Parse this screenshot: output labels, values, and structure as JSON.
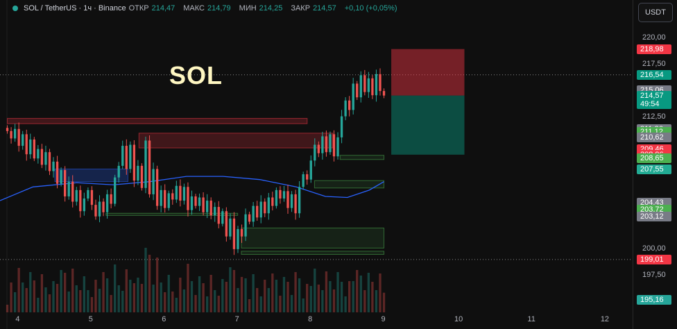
{
  "header": {
    "symbol": "SOL / TetherUS · 1ч · Binance",
    "open_label": "ОТКР",
    "open": "214,47",
    "high_label": "МАКС",
    "high": "214,79",
    "low_label": "МИН",
    "low": "214,25",
    "close_label": "ЗАКР",
    "close": "214,57",
    "change": "+0,10 (+0,05%)"
  },
  "watermark": "SOL",
  "currency": "USDT",
  "colors": {
    "up": "#26a69a",
    "down": "#ef5350",
    "ma": "#2962ff",
    "bg": "#0f0f0f"
  },
  "price_scale": {
    "labels": [
      {
        "text": "220,00",
        "price": 220.0
      },
      {
        "text": "217,50",
        "price": 217.5
      },
      {
        "text": "212,50",
        "price": 212.5
      },
      {
        "text": "200,00",
        "price": 200.0
      },
      {
        "text": "197,50",
        "price": 197.5
      }
    ],
    "badges": [
      {
        "text": "218,98",
        "price": 218.98,
        "color": "#f23645"
      },
      {
        "text": "216,54",
        "price": 216.54,
        "color": "#089981"
      },
      {
        "text": "215,06",
        "price": 215.06,
        "color": "#787b86"
      },
      {
        "text": "211,36",
        "price": 211.36,
        "color": "#787b86"
      },
      {
        "text": "211,12",
        "price": 211.12,
        "color": "#4caf50"
      },
      {
        "text": "210,62",
        "price": 210.62,
        "color": "#787b86"
      },
      {
        "text": "209,46",
        "price": 209.46,
        "color": "#f23645"
      },
      {
        "text": "208,96",
        "price": 208.96,
        "color": "#f23645"
      },
      {
        "text": "208,65",
        "price": 208.65,
        "color": "#4caf50"
      },
      {
        "text": "207,55",
        "price": 207.55,
        "color": "#22ab94"
      },
      {
        "text": "204,43",
        "price": 204.43,
        "color": "#787b86"
      },
      {
        "text": "203,72",
        "price": 203.72,
        "color": "#4caf50"
      },
      {
        "text": "203,12",
        "price": 203.12,
        "color": "#787b86"
      },
      {
        "text": "199,01",
        "price": 199.01,
        "color": "#f23645"
      },
      {
        "text": "195,16",
        "price": 195.16,
        "color": "#26a69a"
      }
    ],
    "current": {
      "price_text": "214,57",
      "countdown": "49:54",
      "price": 214.57,
      "color": "#089981"
    }
  },
  "time_axis": [
    {
      "text": "4",
      "day": 4
    },
    {
      "text": "5",
      "day": 5
    },
    {
      "text": "6",
      "day": 6
    },
    {
      "text": "7",
      "day": 7
    },
    {
      "text": "8",
      "day": 8
    },
    {
      "text": "9",
      "day": 9
    },
    {
      "text": "10",
      "day": 10
    },
    {
      "text": "11",
      "day": 11
    },
    {
      "text": "12",
      "day": 12
    }
  ],
  "chart_data": {
    "type": "candlestick",
    "ylim": [
      194.0,
      221.0
    ],
    "xlim": [
      3.75,
      12.4
    ],
    "grid": false,
    "dotted_levels": [
      216.54,
      199.01
    ],
    "position": {
      "day_start": 9.1,
      "day_end": 10.1,
      "entry": 214.57,
      "stop": 218.98,
      "target": 208.96
    },
    "zones": [
      {
        "day_start": 3.85,
        "day_end": 7.95,
        "low": 211.9,
        "high": 212.4,
        "kind": "supply"
      },
      {
        "day_start": 5.65,
        "day_end": 8.3,
        "low": 209.6,
        "high": 211.0,
        "kind": "supply"
      },
      {
        "day_start": 4.5,
        "day_end": 5.5,
        "low": 206.4,
        "high": 207.6,
        "kind": "demand-blue"
      },
      {
        "day_start": 8.4,
        "day_end": 9.0,
        "low": 208.5,
        "high": 208.9,
        "kind": "demand"
      },
      {
        "day_start": 8.05,
        "day_end": 9.0,
        "low": 205.8,
        "high": 206.5,
        "kind": "demand"
      },
      {
        "day_start": 5.2,
        "day_end": 7.0,
        "low": 203.2,
        "high": 203.4,
        "kind": "demand"
      },
      {
        "day_start": 7.05,
        "day_end": 9.0,
        "low": 200.1,
        "high": 202.0,
        "kind": "demand"
      },
      {
        "day_start": 7.05,
        "day_end": 9.0,
        "low": 199.5,
        "high": 199.8,
        "kind": "demand"
      }
    ],
    "series": [
      {
        "name": "",
        "type": "ma",
        "points": [
          [
            3.75,
            204.6
          ],
          [
            4.2,
            205.9
          ],
          [
            4.8,
            206.3
          ],
          [
            5.3,
            206.1
          ],
          [
            5.8,
            206.4
          ],
          [
            6.3,
            206.9
          ],
          [
            6.8,
            206.9
          ],
          [
            7.3,
            206.6
          ],
          [
            7.8,
            205.9
          ],
          [
            8.2,
            205.0
          ],
          [
            8.5,
            204.9
          ],
          [
            8.8,
            205.6
          ],
          [
            9.0,
            206.4
          ]
        ]
      }
    ],
    "closes": [
      211.2,
      210.5,
      211.4,
      209.8,
      210.9,
      209.0,
      210.4,
      208.6,
      209.5,
      208.0,
      209.2,
      207.4,
      208.3,
      206.2,
      207.5,
      205.0,
      206.4,
      204.5,
      205.6,
      203.6,
      204.8,
      205.6,
      204.2,
      203.1,
      204.5,
      203.5,
      205.2,
      204.3,
      206.8,
      207.9,
      209.8,
      207.6,
      209.9,
      206.5,
      207.9,
      205.8,
      210.3,
      205.2,
      207.6,
      204.1,
      205.6,
      203.9,
      205.3,
      204.7,
      206.0,
      204.6,
      205.9,
      203.7,
      205.0,
      204.1,
      204.9,
      203.5,
      204.6,
      203.2,
      204.0,
      202.4,
      203.6,
      201.2,
      202.9,
      200.0,
      201.9,
      201.2,
      203.3,
      202.6,
      204.1,
      203.0,
      204.5,
      203.4,
      204.9,
      204.1,
      205.6,
      204.8,
      205.5,
      203.9,
      205.2,
      203.4,
      205.9,
      207.1,
      206.6,
      208.4,
      209.9,
      209.1,
      210.7,
      209.2,
      210.9,
      208.8,
      210.6,
      212.6,
      214.1,
      213.2,
      215.7,
      214.4,
      216.5,
      214.9,
      216.2,
      214.6,
      216.6,
      215.0,
      214.57
    ]
  }
}
